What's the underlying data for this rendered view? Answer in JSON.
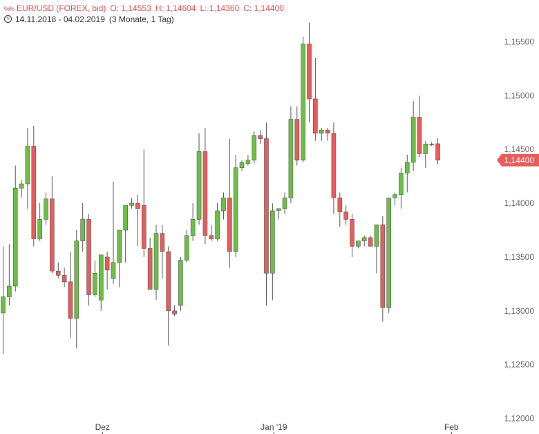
{
  "header": {
    "logo": "%%",
    "instrument": "EUR/USD (FOREX, bid)",
    "open": "O: 1,14553",
    "high": "H: 1,14604",
    "low": "L: 1,14360",
    "close": "C: 1,14400",
    "period": "14.11.2018 - 04.02.2019",
    "interval": "(3 Monate, 1 Tag)",
    "clock_icon": "clock-icon"
  },
  "colors": {
    "up": "#6cbf45",
    "down": "#e85c5c",
    "badge": "#e85c5c"
  },
  "chart_data": {
    "type": "candlestick",
    "title": "EUR/USD (FOREX, bid)",
    "ylim": [
      1.12,
      1.157
    ],
    "y_ticks": [
      "1,15500",
      "1,15000",
      "1,14500",
      "1,14000",
      "1,13500",
      "1,13000",
      "1,12500",
      "1,12000"
    ],
    "y_tick_values": [
      1.155,
      1.15,
      1.145,
      1.14,
      1.135,
      1.13,
      1.125,
      1.12
    ],
    "x_ticks": [
      {
        "label": "Dez",
        "index": 16
      },
      {
        "label": "Jan '19",
        "index": 44
      },
      {
        "label": "Feb",
        "index": 73
      }
    ],
    "last_price_label": "1,14400",
    "last_price": 1.144,
    "candles": [
      [
        1.1298,
        1.136,
        1.126,
        1.1313
      ],
      [
        1.1313,
        1.1362,
        1.1305,
        1.1323
      ],
      [
        1.1323,
        1.1435,
        1.1318,
        1.1414
      ],
      [
        1.1414,
        1.1422,
        1.1405,
        1.1418
      ],
      [
        1.1418,
        1.147,
        1.1395,
        1.1453
      ],
      [
        1.1453,
        1.1472,
        1.136,
        1.1367
      ],
      [
        1.1367,
        1.14,
        1.1365,
        1.1385
      ],
      [
        1.1385,
        1.141,
        1.138,
        1.1404
      ],
      [
        1.1404,
        1.1425,
        1.1335,
        1.1337
      ],
      [
        1.1337,
        1.1345,
        1.133,
        1.1333
      ],
      [
        1.1333,
        1.134,
        1.1322,
        1.1327
      ],
      [
        1.1327,
        1.1355,
        1.1275,
        1.1293
      ],
      [
        1.1293,
        1.1375,
        1.1265,
        1.1365
      ],
      [
        1.1365,
        1.14,
        1.1355,
        1.1385
      ],
      [
        1.1385,
        1.139,
        1.1305,
        1.1315
      ],
      [
        1.1315,
        1.1347,
        1.1313,
        1.1335
      ],
      [
        1.131,
        1.1352,
        1.13,
        1.1352
      ],
      [
        1.135,
        1.1355,
        1.132,
        1.1338
      ],
      [
        1.133,
        1.142,
        1.1325,
        1.1345
      ],
      [
        1.1345,
        1.1375,
        1.1322,
        1.1375
      ],
      [
        1.1375,
        1.1398,
        1.1345,
        1.1398
      ],
      [
        1.1398,
        1.1405,
        1.1395,
        1.14
      ],
      [
        1.14,
        1.1408,
        1.136,
        1.1395
      ],
      [
        1.1398,
        1.145,
        1.135,
        1.1358
      ],
      [
        1.1358,
        1.1368,
        1.132,
        1.132
      ],
      [
        1.132,
        1.138,
        1.131,
        1.1372
      ],
      [
        1.1372,
        1.138,
        1.133,
        1.1355
      ],
      [
        1.1355,
        1.136,
        1.1268,
        1.13
      ],
      [
        1.13,
        1.1305,
        1.1295,
        1.1297
      ],
      [
        1.1305,
        1.135,
        1.13,
        1.1347
      ],
      [
        1.1347,
        1.1375,
        1.1345,
        1.137
      ],
      [
        1.137,
        1.14,
        1.1365,
        1.1385
      ],
      [
        1.1385,
        1.1465,
        1.138,
        1.1448
      ],
      [
        1.1448,
        1.147,
        1.1362,
        1.137
      ],
      [
        1.137,
        1.138,
        1.1365,
        1.1367
      ],
      [
        1.1367,
        1.14,
        1.1365,
        1.1393
      ],
      [
        1.1393,
        1.141,
        1.1385,
        1.1405
      ],
      [
        1.1405,
        1.146,
        1.134,
        1.1355
      ],
      [
        1.1355,
        1.1445,
        1.135,
        1.1433
      ],
      [
        1.1433,
        1.144,
        1.143,
        1.1438
      ],
      [
        1.1437,
        1.1445,
        1.1435,
        1.144
      ],
      [
        1.144,
        1.1467,
        1.1437,
        1.1463
      ],
      [
        1.1463,
        1.1468,
        1.1455,
        1.146
      ],
      [
        1.146,
        1.1475,
        1.1305,
        1.1335
      ],
      [
        1.1335,
        1.14,
        1.131,
        1.1393
      ],
      [
        1.1393,
        1.1395,
        1.1385,
        1.1395
      ],
      [
        1.1395,
        1.141,
        1.139,
        1.1405
      ],
      [
        1.1405,
        1.149,
        1.14,
        1.1478
      ],
      [
        1.1478,
        1.149,
        1.1435,
        1.144
      ],
      [
        1.144,
        1.1555,
        1.1438,
        1.1548
      ],
      [
        1.1548,
        1.1568,
        1.1475,
        1.1497
      ],
      [
        1.1497,
        1.1535,
        1.1458,
        1.1465
      ],
      [
        1.1465,
        1.147,
        1.1458,
        1.1468
      ],
      [
        1.1468,
        1.147,
        1.1458,
        1.1465
      ],
      [
        1.1465,
        1.1475,
        1.139,
        1.1405
      ],
      [
        1.1405,
        1.141,
        1.1378,
        1.1392
      ],
      [
        1.1392,
        1.1398,
        1.138,
        1.1385
      ],
      [
        1.1385,
        1.139,
        1.135,
        1.136
      ],
      [
        1.136,
        1.1365,
        1.1358,
        1.1365
      ],
      [
        1.1365,
        1.137,
        1.136,
        1.1368
      ],
      [
        1.1368,
        1.137,
        1.136,
        1.136
      ],
      [
        1.136,
        1.138,
        1.1335,
        1.138
      ],
      [
        1.138,
        1.1388,
        1.129,
        1.1303
      ],
      [
        1.1303,
        1.1405,
        1.1298,
        1.1405
      ],
      [
        1.1405,
        1.141,
        1.1398,
        1.1408
      ],
      [
        1.1408,
        1.1433,
        1.1395,
        1.1428
      ],
      [
        1.1428,
        1.1445,
        1.141,
        1.1438
      ],
      [
        1.1438,
        1.1495,
        1.143,
        1.148
      ],
      [
        1.148,
        1.15,
        1.1443,
        1.1446
      ],
      [
        1.1446,
        1.1458,
        1.1433,
        1.1455
      ],
      [
        1.1455,
        1.1457,
        1.1453,
        1.1455
      ],
      [
        1.14553,
        1.14604,
        1.1436,
        1.144
      ]
    ]
  }
}
